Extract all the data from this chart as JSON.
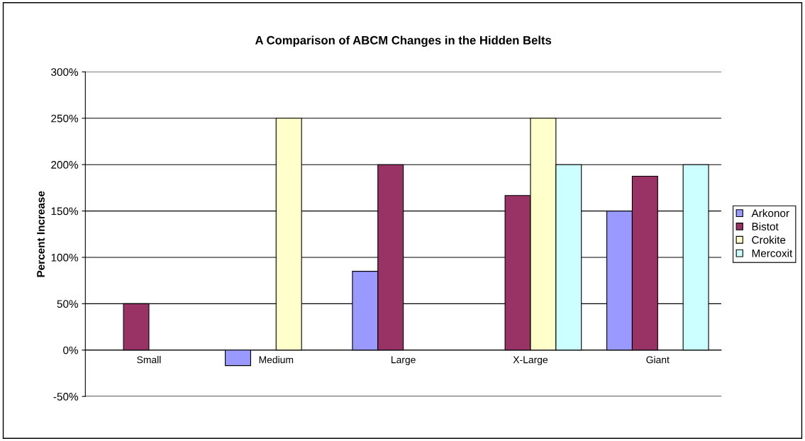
{
  "chart_data": {
    "type": "bar",
    "title": "A Comparison of ABCM Changes in the Hidden Belts",
    "ylabel": "Percent Increase",
    "categories": [
      "Small",
      "Medium",
      "Large",
      "X-Large",
      "Giant"
    ],
    "series": [
      {
        "name": "Arkonor",
        "color": "#9999ff",
        "values": [
          null,
          -16.7,
          85,
          null,
          150
        ]
      },
      {
        "name": "Bistot",
        "color": "#993366",
        "values": [
          50,
          null,
          200,
          166.7,
          187.5
        ]
      },
      {
        "name": "Crokite",
        "color": "#ffffcc",
        "values": [
          null,
          250,
          null,
          250,
          null
        ]
      },
      {
        "name": "Mercoxit",
        "color": "#ccffff",
        "values": [
          null,
          null,
          null,
          200,
          200
        ]
      }
    ],
    "ylim": [
      -50,
      300
    ],
    "yticks": [
      {
        "value": -50,
        "label": "-50%"
      },
      {
        "value": 0,
        "label": "0%"
      },
      {
        "value": 50,
        "label": "50%"
      },
      {
        "value": 100,
        "label": "100%"
      },
      {
        "value": 150,
        "label": "150%"
      },
      {
        "value": 200,
        "label": "200%"
      },
      {
        "value": 250,
        "label": "250%"
      },
      {
        "value": 300,
        "label": "300%"
      }
    ],
    "grid": "y",
    "legend": "right"
  }
}
